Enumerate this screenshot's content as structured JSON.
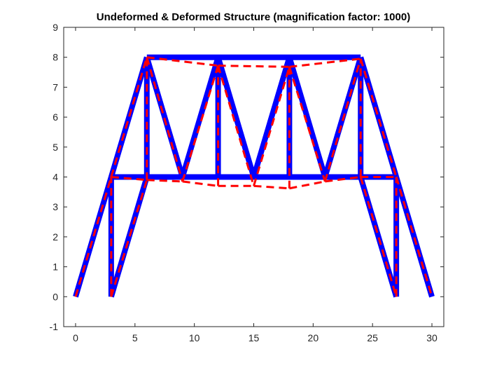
{
  "chart_data": {
    "type": "line",
    "title": "Undeformed & Deformed Structure (magnification factor: 1000)",
    "xlabel": "",
    "ylabel": "",
    "xlim": [
      -1,
      31
    ],
    "ylim": [
      -1,
      9
    ],
    "xticks": [
      0,
      5,
      10,
      15,
      20,
      25,
      30
    ],
    "yticks": [
      -1,
      0,
      1,
      2,
      3,
      4,
      5,
      6,
      7,
      8,
      9
    ],
    "grid": false,
    "legend": false,
    "series": [
      {
        "role": "undeformed",
        "color": "#0000ff",
        "style": "solid",
        "members": [
          [
            [
              0,
              0
            ],
            [
              3,
              4
            ]
          ],
          [
            [
              3,
              4
            ],
            [
              6,
              8
            ]
          ],
          [
            [
              3,
              0
            ],
            [
              3,
              4
            ]
          ],
          [
            [
              3,
              0
            ],
            [
              6,
              4
            ]
          ],
          [
            [
              6,
              4
            ],
            [
              6,
              8
            ]
          ],
          [
            [
              3,
              4
            ],
            [
              27,
              4
            ]
          ],
          [
            [
              6,
              8
            ],
            [
              24,
              8
            ]
          ],
          [
            [
              6,
              8
            ],
            [
              9,
              4
            ]
          ],
          [
            [
              9,
              4
            ],
            [
              12,
              8
            ]
          ],
          [
            [
              12,
              4
            ],
            [
              12,
              8
            ]
          ],
          [
            [
              12,
              8
            ],
            [
              15,
              4
            ]
          ],
          [
            [
              15,
              4
            ],
            [
              18,
              8
            ]
          ],
          [
            [
              18,
              4
            ],
            [
              18,
              8
            ]
          ],
          [
            [
              18,
              8
            ],
            [
              21,
              4
            ]
          ],
          [
            [
              21,
              4
            ],
            [
              24,
              8
            ]
          ],
          [
            [
              24,
              4
            ],
            [
              24,
              8
            ]
          ],
          [
            [
              24,
              8
            ],
            [
              27,
              4
            ]
          ],
          [
            [
              27,
              4
            ],
            [
              30,
              0
            ]
          ],
          [
            [
              27,
              0
            ],
            [
              27,
              4
            ]
          ],
          [
            [
              24,
              4
            ],
            [
              27,
              0
            ]
          ]
        ]
      },
      {
        "role": "deformed",
        "color": "#ff0000",
        "style": "dashed",
        "members": [
          [
            [
              0,
              0
            ],
            [
              3,
              4
            ]
          ],
          [
            [
              3,
              4
            ],
            [
              6,
              8
            ]
          ],
          [
            [
              3,
              0
            ],
            [
              3,
              4
            ]
          ],
          [
            [
              3,
              0
            ],
            [
              6,
              3.9
            ]
          ],
          [
            [
              6,
              3.9
            ],
            [
              6,
              8
            ]
          ],
          [
            [
              3,
              4
            ],
            [
              6,
              3.9
            ]
          ],
          [
            [
              6,
              3.9
            ],
            [
              9,
              3.85
            ]
          ],
          [
            [
              9,
              3.85
            ],
            [
              12,
              3.7
            ]
          ],
          [
            [
              12,
              3.7
            ],
            [
              15,
              3.7
            ]
          ],
          [
            [
              15,
              3.7
            ],
            [
              18,
              3.62
            ]
          ],
          [
            [
              18,
              3.62
            ],
            [
              21,
              3.85
            ]
          ],
          [
            [
              21,
              3.85
            ],
            [
              24,
              4
            ]
          ],
          [
            [
              24,
              4
            ],
            [
              27,
              4
            ]
          ],
          [
            [
              6,
              8
            ],
            [
              12,
              7.72
            ]
          ],
          [
            [
              12,
              7.72
            ],
            [
              18,
              7.68
            ]
          ],
          [
            [
              18,
              7.68
            ],
            [
              24,
              7.95
            ]
          ],
          [
            [
              6,
              8
            ],
            [
              9,
              3.85
            ]
          ],
          [
            [
              9,
              3.85
            ],
            [
              12,
              7.72
            ]
          ],
          [
            [
              12,
              3.7
            ],
            [
              12,
              7.72
            ]
          ],
          [
            [
              12,
              7.72
            ],
            [
              15,
              3.7
            ]
          ],
          [
            [
              15,
              3.7
            ],
            [
              18,
              7.68
            ]
          ],
          [
            [
              18,
              3.62
            ],
            [
              18,
              7.68
            ]
          ],
          [
            [
              18,
              7.68
            ],
            [
              21,
              3.85
            ]
          ],
          [
            [
              21,
              3.85
            ],
            [
              24,
              7.95
            ]
          ],
          [
            [
              24,
              4
            ],
            [
              24,
              7.95
            ]
          ],
          [
            [
              24,
              7.95
            ],
            [
              27,
              4
            ]
          ],
          [
            [
              27,
              4
            ],
            [
              30,
              0
            ]
          ],
          [
            [
              27,
              0
            ],
            [
              27,
              4
            ]
          ],
          [
            [
              24,
              4
            ],
            [
              27,
              0
            ]
          ]
        ]
      }
    ]
  }
}
